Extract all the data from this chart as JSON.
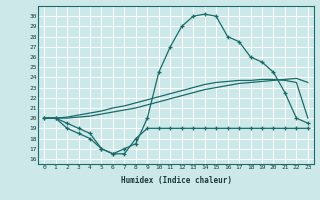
{
  "xlabel": "Humidex (Indice chaleur)",
  "bg_color": "#cce8e8",
  "line_color": "#1a6b6b",
  "grid_color": "#ffffff",
  "xlim": [
    -0.5,
    23.5
  ],
  "ylim": [
    15.5,
    31.0
  ],
  "xticks": [
    0,
    1,
    2,
    3,
    4,
    5,
    6,
    7,
    8,
    9,
    10,
    11,
    12,
    13,
    14,
    15,
    16,
    17,
    18,
    19,
    20,
    21,
    22,
    23
  ],
  "yticks": [
    16,
    17,
    18,
    19,
    20,
    21,
    22,
    23,
    24,
    25,
    26,
    27,
    28,
    29,
    30
  ],
  "line_max": [
    20,
    20,
    19.5,
    19,
    18.5,
    17,
    16.5,
    17,
    17.5,
    20,
    24.5,
    27,
    29,
    30,
    30.2,
    30,
    28,
    27.5,
    26,
    25.5,
    24.5,
    22.5,
    20,
    19.5
  ],
  "line_min": [
    20,
    20,
    19,
    18.5,
    18,
    17,
    16.5,
    16.5,
    18,
    19,
    19,
    19,
    19,
    19,
    19,
    19,
    19,
    19,
    19,
    19,
    19,
    19,
    19,
    19
  ],
  "line_trend1": [
    20,
    20,
    20,
    20.1,
    20.2,
    20.4,
    20.6,
    20.8,
    21.0,
    21.3,
    21.6,
    21.9,
    22.2,
    22.5,
    22.8,
    23.0,
    23.2,
    23.4,
    23.5,
    23.6,
    23.7,
    23.8,
    23.9,
    23.5
  ],
  "line_trend2": [
    20,
    20,
    20.1,
    20.3,
    20.5,
    20.7,
    21.0,
    21.2,
    21.5,
    21.8,
    22.1,
    22.4,
    22.7,
    23.0,
    23.3,
    23.5,
    23.6,
    23.7,
    23.7,
    23.8,
    23.8,
    23.7,
    23.5,
    20
  ]
}
